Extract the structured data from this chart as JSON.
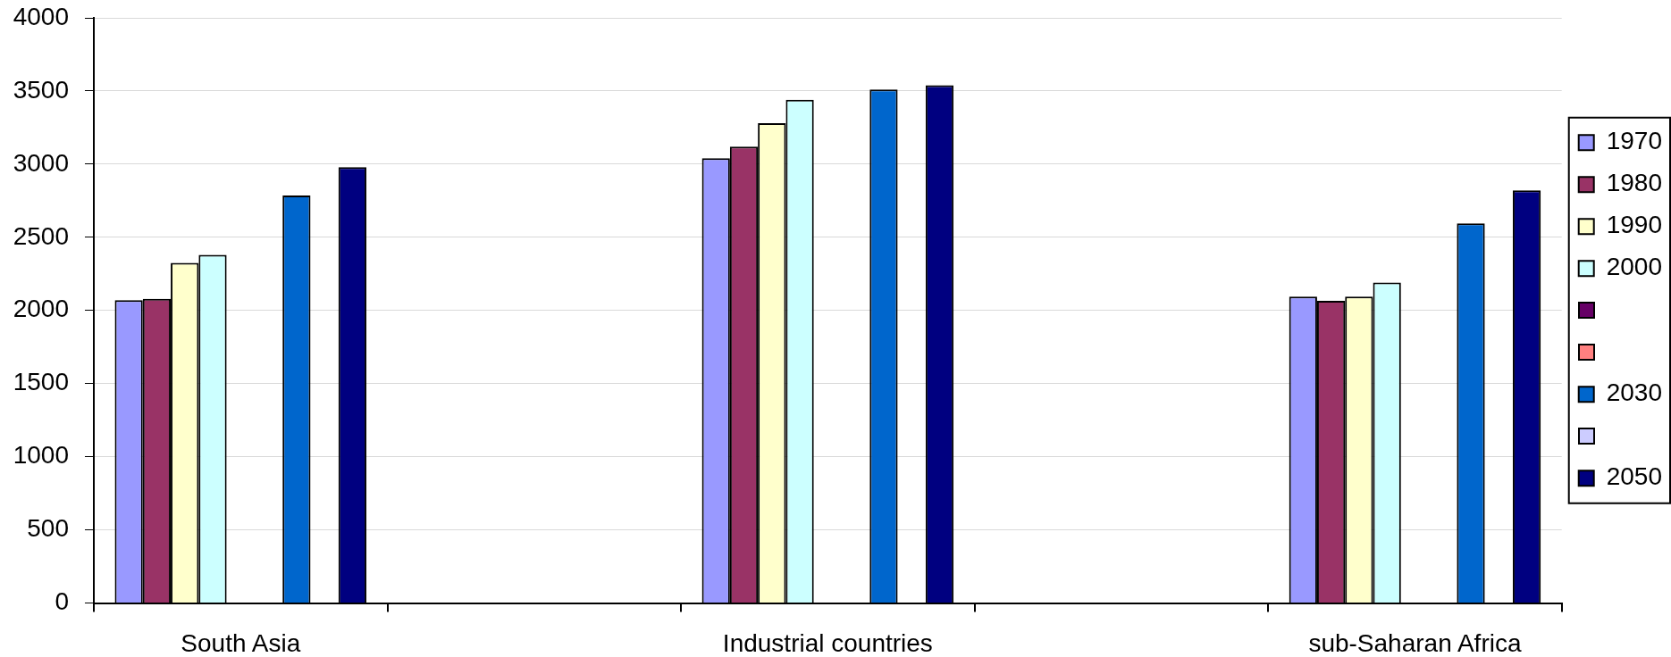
{
  "chart_data": {
    "type": "bar",
    "categories": [
      "South Asia",
      null,
      "Industrial countries",
      null,
      "sub-Saharan Africa"
    ],
    "series": [
      {
        "name": "1970",
        "color": "#9999ff",
        "values": [
          2070,
          null,
          3040,
          null,
          2095
        ]
      },
      {
        "name": "1980",
        "color": "#993366",
        "values": [
          2080,
          null,
          3120,
          null,
          2065
        ]
      },
      {
        "name": "1990",
        "color": "#ffffcc",
        "values": [
          2325,
          null,
          3280,
          null,
          2095
        ]
      },
      {
        "name": "2000",
        "color": "#ccffff",
        "values": [
          2380,
          null,
          3440,
          null,
          2190
        ]
      },
      {
        "color": "#660066",
        "values": [
          null,
          null,
          null,
          null,
          null
        ]
      },
      {
        "color": "#ff8080",
        "values": [
          null,
          null,
          null,
          null,
          null
        ]
      },
      {
        "name": "2030",
        "color": "#0066cc",
        "values": [
          2785,
          null,
          3510,
          null,
          2595
        ]
      },
      {
        "color": "#ccccff",
        "values": [
          null,
          null,
          null,
          null,
          null
        ]
      },
      {
        "name": "2050",
        "color": "#000080",
        "values": [
          2980,
          null,
          3540,
          null,
          2820
        ]
      }
    ],
    "ylim": [
      0,
      4000
    ],
    "yticks": [
      0,
      500,
      1000,
      1500,
      2000,
      2500,
      3000,
      3500,
      4000
    ],
    "grid": "y",
    "legend": "right"
  }
}
